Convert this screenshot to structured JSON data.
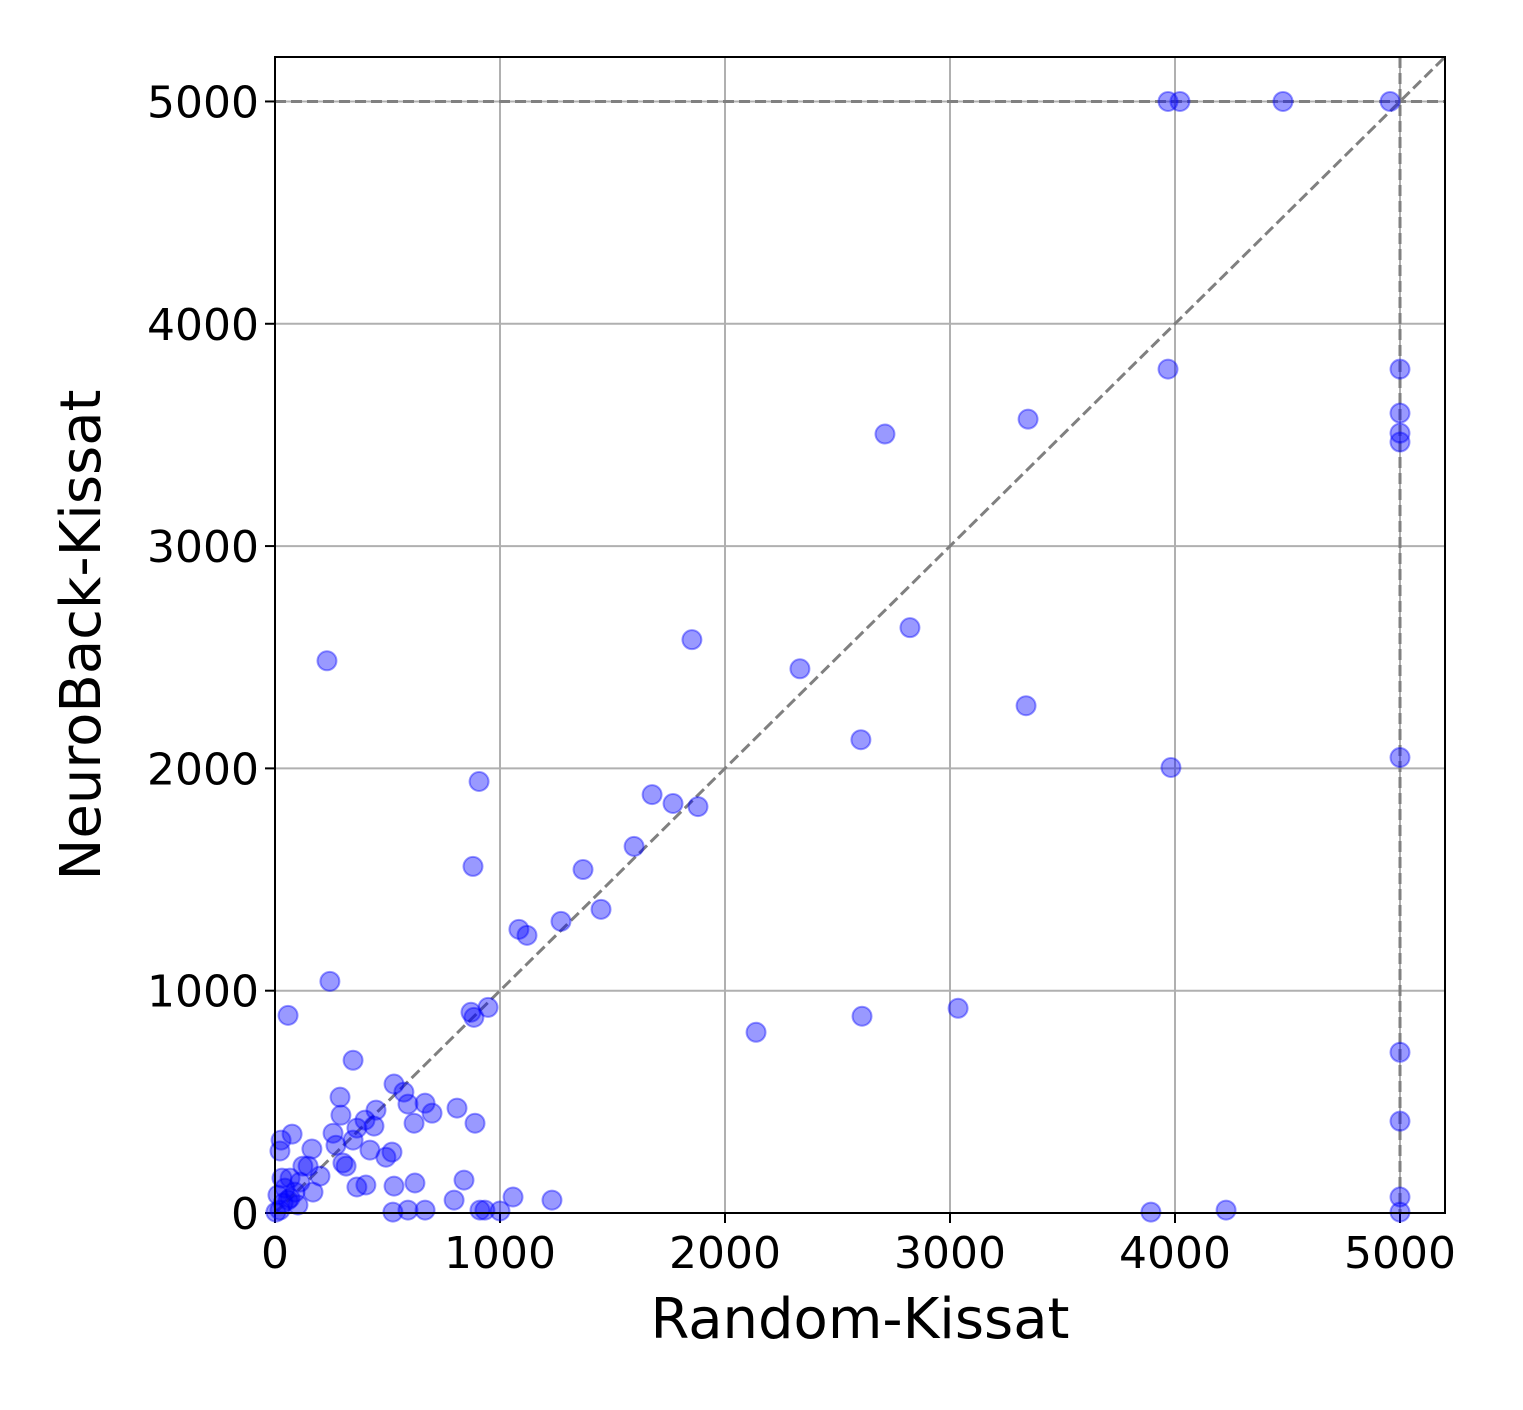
{
  "chart_data": {
    "type": "scatter",
    "x_label": "Random-Kissat",
    "y_label": "NeuroBack-Kissat",
    "xlim": [
      0,
      5200
    ],
    "ylim": [
      0,
      5200
    ],
    "xticks": [
      0,
      1000,
      2000,
      3000,
      4000,
      5000
    ],
    "yticks": [
      0,
      1000,
      2000,
      3000,
      4000,
      5000
    ],
    "grid": true,
    "hlines": [
      5000
    ],
    "vlines": [
      5000
    ],
    "diagonal": true,
    "color": "#0000ff",
    "alpha": 0.4,
    "x": [
      3969,
      4022,
      4480,
      4956,
      5000,
      3969,
      5000,
      5000,
      5000,
      3347,
      2711,
      231,
      1853,
      2822,
      2333,
      3338,
      2604,
      3982,
      5000,
      907,
      1676,
      1769,
      1880,
      1596,
      880,
      1369,
      1449,
      1271,
      1084,
      1120,
      244,
      58,
      871,
      947,
      884,
      2138,
      2609,
      3036,
      5000,
      5000,
      5000,
      5000,
      3893,
      4227,
      1058,
      1231,
      796,
      911,
      933,
      1000,
      524,
      591,
      667,
      622,
      529,
      840,
      347,
      529,
      573,
      591,
      667,
      698,
      809,
      618,
      889,
      289,
      293,
      449,
      440,
      400,
      364,
      347,
      271,
      258,
      302,
      422,
      520,
      493,
      364,
      404,
      316,
      76,
      27,
      22,
      124,
      164,
      147,
      169,
      111,
      67,
      31,
      89,
      67,
      36,
      22,
      102,
      200,
      44,
      13,
      4,
      58
    ],
    "values": [
      5000,
      5000,
      5000,
      5000,
      3796,
      3796,
      3598,
      3508,
      3468,
      3571,
      3504,
      2484,
      2579,
      2633,
      2448,
      2282,
      2129,
      2004,
      2049,
      1941,
      1882,
      1842,
      1828,
      1649,
      1559,
      1545,
      1366,
      1312,
      1276,
      1249,
      1042,
      889,
      903,
      925,
      880,
      813,
      885,
      921,
      723,
      413,
      72,
      4,
      4,
      13,
      72,
      58,
      58,
      13,
      13,
      9,
      4,
      13,
      13,
      135,
      121,
      148,
      687,
      580,
      544,
      490,
      494,
      449,
      472,
      404,
      404,
      521,
      440,
      463,
      391,
      418,
      382,
      328,
      305,
      359,
      225,
      283,
      274,
      251,
      117,
      126,
      211,
      355,
      328,
      279,
      211,
      288,
      211,
      94,
      139,
      157,
      157,
      94,
      67,
      45,
      13,
      36,
      166,
      112,
      81,
      4,
      58
    ]
  }
}
